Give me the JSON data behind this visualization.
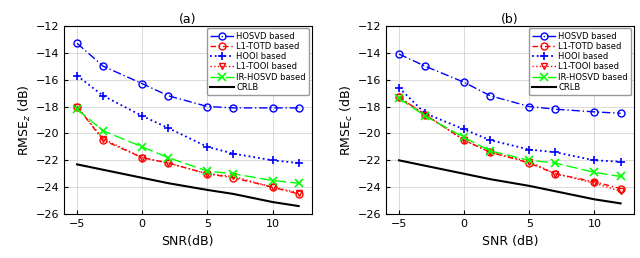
{
  "snr": [
    -5,
    -3,
    0,
    2,
    5,
    7,
    10,
    12
  ],
  "subplot_a": {
    "title": "(a)",
    "ylabel": "RMSE$_z$ (dB)",
    "xlabel": "SNR(dB)",
    "HOSVD": [
      -13.3,
      -15.0,
      -16.3,
      -17.2,
      -18.0,
      -18.1,
      -18.1,
      -18.1
    ],
    "L1TOTD": [
      -18.0,
      -20.5,
      -21.8,
      -22.2,
      -23.0,
      -23.3,
      -24.0,
      -24.5
    ],
    "HOOI": [
      -15.7,
      -17.2,
      -18.7,
      -19.6,
      -21.0,
      -21.5,
      -22.0,
      -22.2
    ],
    "L1TOOI": [
      -18.0,
      -20.4,
      -21.8,
      -22.2,
      -23.0,
      -23.2,
      -24.0,
      -24.4
    ],
    "IRHOSVD": [
      -18.2,
      -19.8,
      -21.0,
      -21.8,
      -22.8,
      -23.0,
      -23.5,
      -23.7
    ],
    "CRLB": [
      -22.3,
      -22.7,
      -23.3,
      -23.7,
      -24.2,
      -24.5,
      -25.1,
      -25.4
    ]
  },
  "subplot_b": {
    "title": "(b)",
    "ylabel": "RMSE$_c$ (dB)",
    "xlabel": "SNR (dB)",
    "HOSVD": [
      -14.1,
      -15.0,
      -16.2,
      -17.2,
      -18.0,
      -18.2,
      -18.4,
      -18.5
    ],
    "L1TOTD": [
      -17.3,
      -18.6,
      -20.5,
      -21.4,
      -22.2,
      -23.0,
      -23.6,
      -24.1
    ],
    "HOOI": [
      -16.6,
      -18.5,
      -19.7,
      -20.5,
      -21.2,
      -21.4,
      -22.0,
      -22.1
    ],
    "L1TOOI": [
      -17.3,
      -18.6,
      -20.5,
      -21.4,
      -22.1,
      -23.0,
      -23.7,
      -24.3
    ],
    "IRHOSVD": [
      -17.4,
      -18.7,
      -20.3,
      -21.3,
      -22.0,
      -22.2,
      -22.9,
      -23.2
    ],
    "CRLB": [
      -22.0,
      -22.4,
      -23.0,
      -23.4,
      -23.9,
      -24.3,
      -24.9,
      -25.2
    ]
  },
  "ylim": [
    -26,
    -12
  ],
  "yticks": [
    -26,
    -24,
    -22,
    -20,
    -18,
    -16,
    -14,
    -12
  ],
  "xticks": [
    -5,
    0,
    5,
    10
  ]
}
